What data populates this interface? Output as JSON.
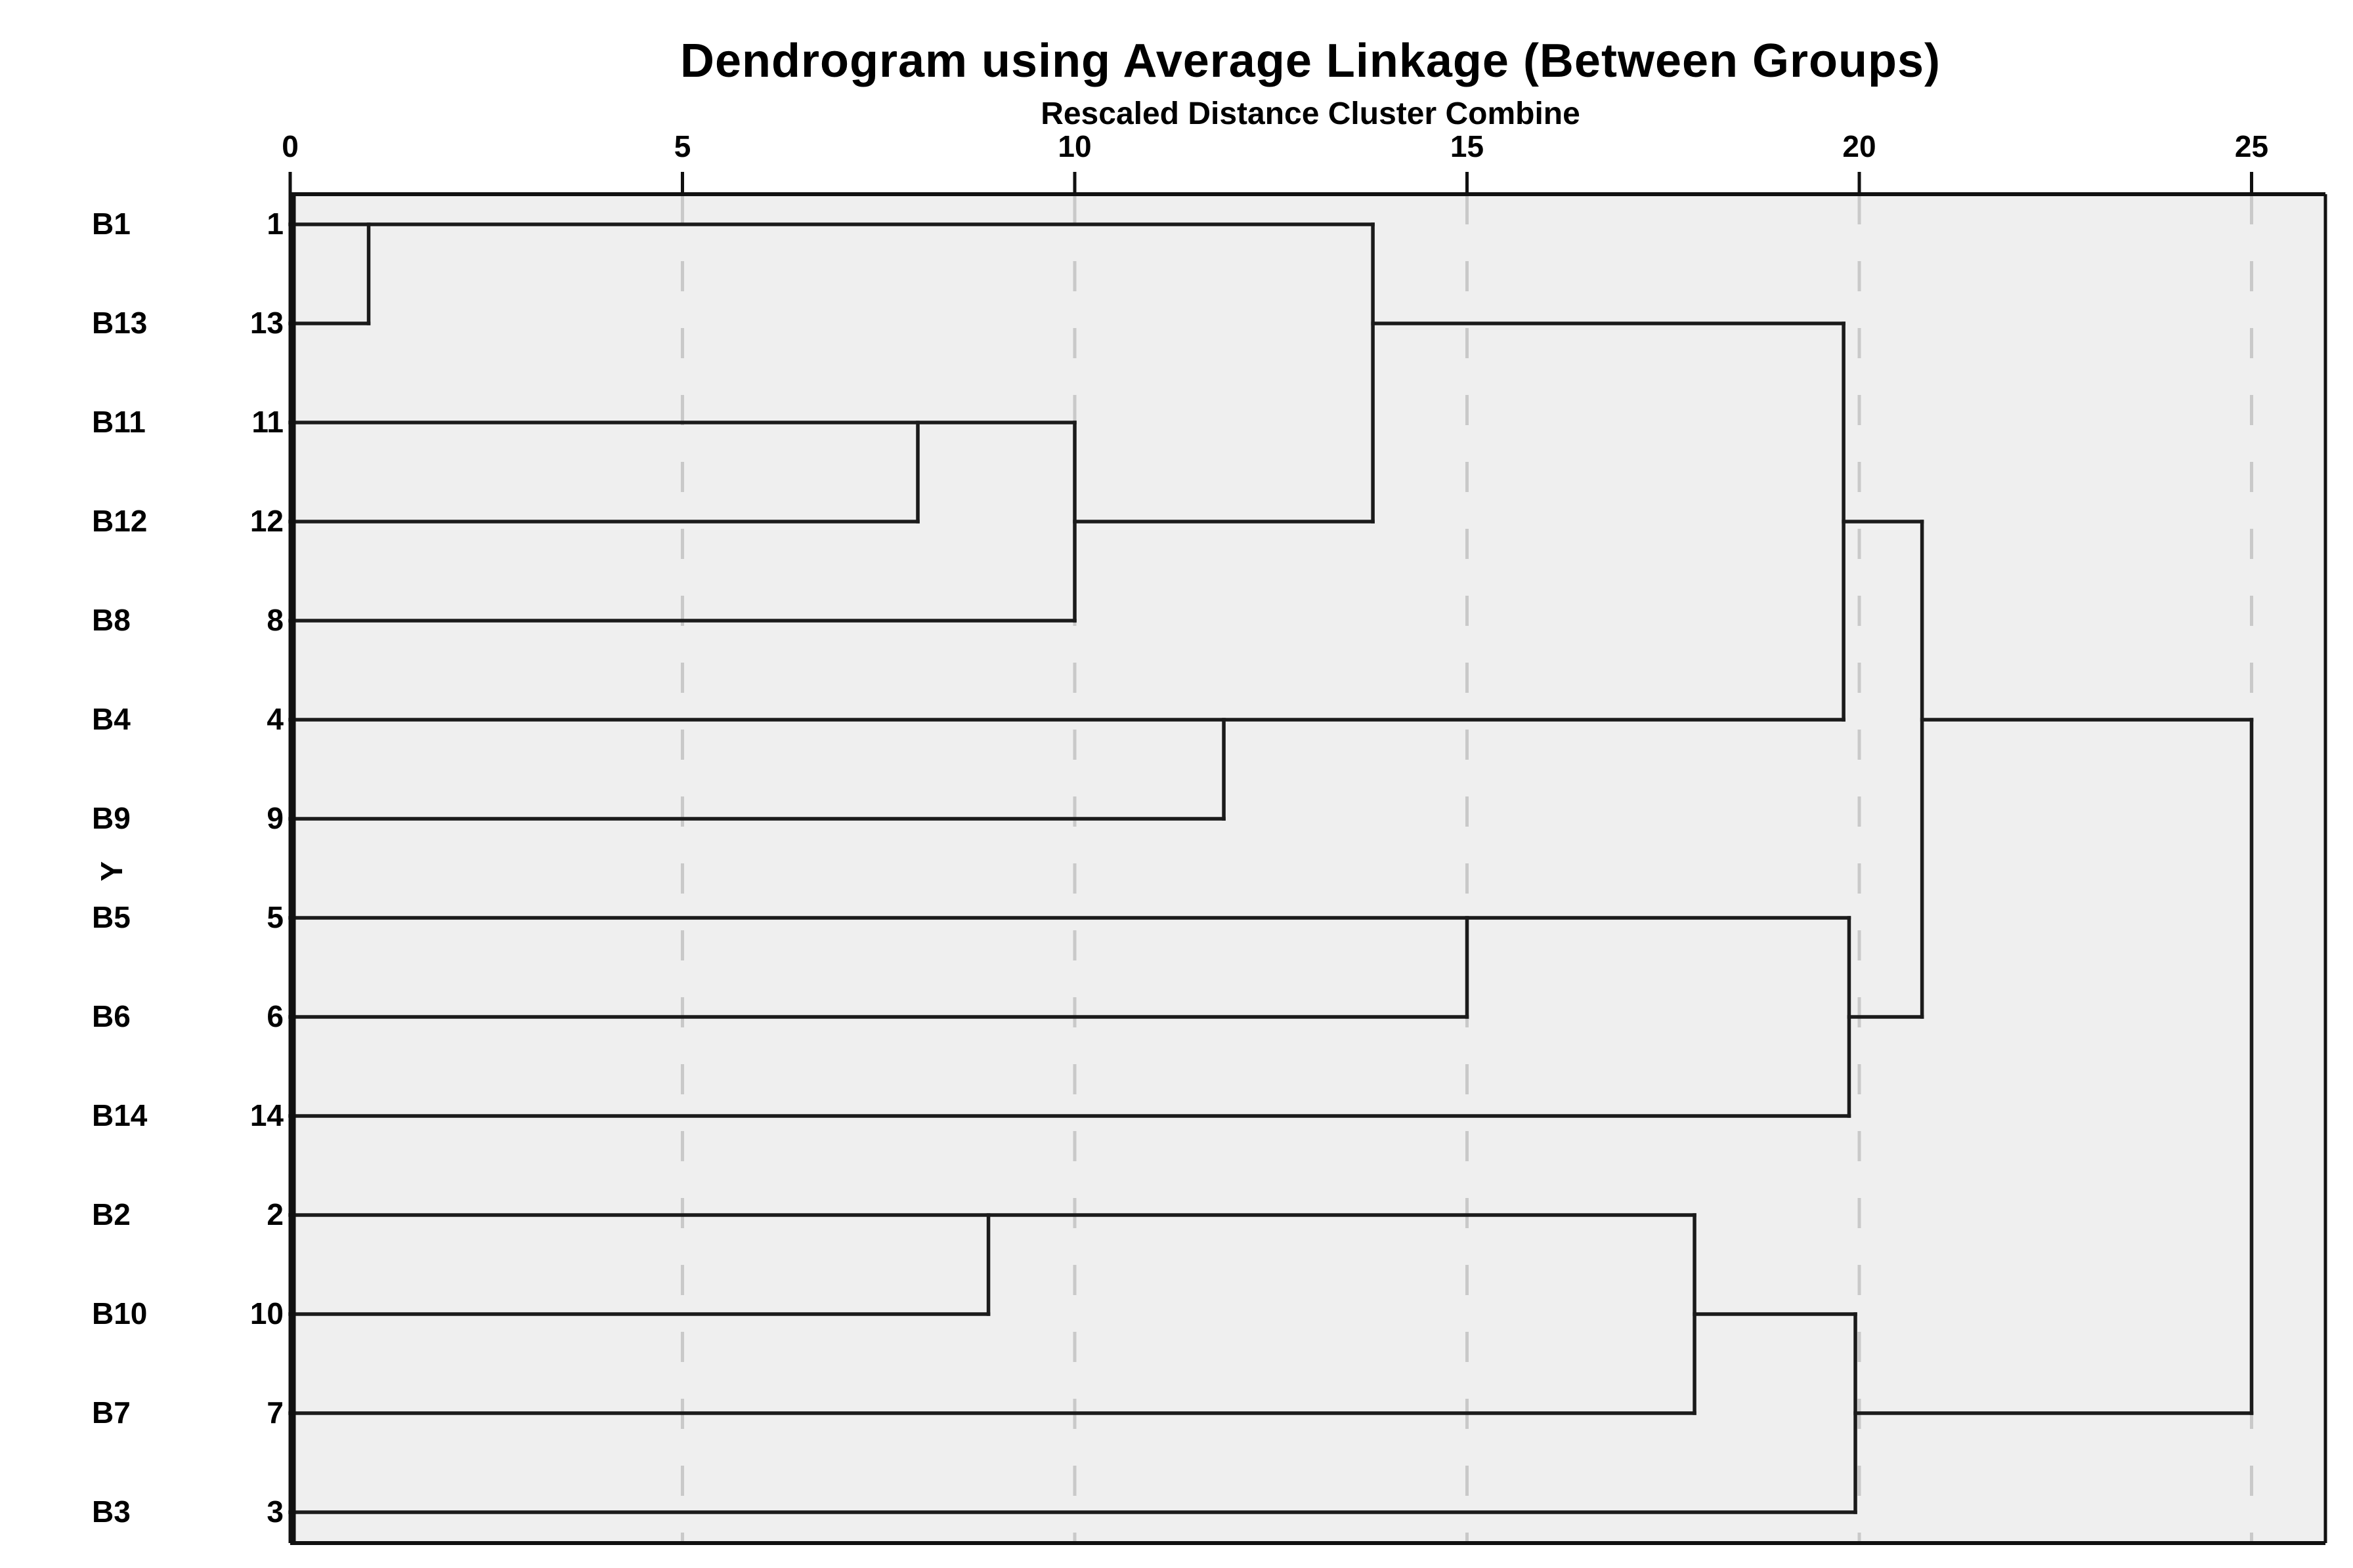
{
  "title": "Dendrogram using Average Linkage (Between Groups)",
  "subtitle": "Rescaled Distance Cluster Combine",
  "y_axis_label": "Y",
  "colors": {
    "page_bg": "#ffffff",
    "plot_bg": "#efefef",
    "line": "#1b1b1b",
    "gridline": "#c9c9c9",
    "border": "#111111",
    "text": "#000000"
  },
  "chart_data": {
    "type": "dendrogram",
    "orientation": "horizontal",
    "linkage_method": "Average Linkage (Between Groups)",
    "distance_axis_title": "Rescaled Distance Cluster Combine",
    "x_axis": {
      "min": 0,
      "max": 26,
      "ticks": [
        0,
        5,
        10,
        15,
        20,
        25
      ],
      "tick_labels": [
        "0",
        "5",
        "10",
        "15",
        "20",
        "25"
      ],
      "gridlines_at": [
        5,
        10,
        15,
        20,
        25
      ],
      "gridline_style": "dashed"
    },
    "leaves": [
      {
        "label": "B1",
        "case_number": "1"
      },
      {
        "label": "B13",
        "case_number": "13"
      },
      {
        "label": "B11",
        "case_number": "11"
      },
      {
        "label": "B12",
        "case_number": "12"
      },
      {
        "label": "B8",
        "case_number": "8"
      },
      {
        "label": "B4",
        "case_number": "4"
      },
      {
        "label": "B9",
        "case_number": "9"
      },
      {
        "label": "B5",
        "case_number": "5"
      },
      {
        "label": "B6",
        "case_number": "6"
      },
      {
        "label": "B14",
        "case_number": "14"
      },
      {
        "label": "B2",
        "case_number": "2"
      },
      {
        "label": "B10",
        "case_number": "10"
      },
      {
        "label": "B7",
        "case_number": "7"
      },
      {
        "label": "B3",
        "case_number": "3"
      }
    ],
    "merges": [
      {
        "clusters": [
          "B1",
          "B13"
        ],
        "distance": 1
      },
      {
        "clusters": [
          "B11",
          "B12"
        ],
        "distance": 8
      },
      {
        "clusters": [
          "B11+B12",
          "B8"
        ],
        "distance": 10
      },
      {
        "clusters": [
          "B4",
          "B9"
        ],
        "distance": 12
      },
      {
        "clusters": [
          "B1+B13",
          "B11+B12+B8"
        ],
        "distance": 14
      },
      {
        "clusters": [
          "B5",
          "B6"
        ],
        "distance": 15
      },
      {
        "clusters": [
          "B2",
          "B10"
        ],
        "distance": 9
      },
      {
        "clusters": [
          "B2+B10",
          "B7"
        ],
        "distance": 18
      },
      {
        "clusters": [
          "B1+B13+B11+B12+B8",
          "B4+B9"
        ],
        "distance": 20
      },
      {
        "clusters": [
          "B5+B6",
          "B14"
        ],
        "distance": 20
      },
      {
        "clusters": [
          "B2+B10+B7",
          "B3"
        ],
        "distance": 20
      },
      {
        "clusters": [
          "B1+B13+B11+B12+B8+B4+B9",
          "B5+B6+B14"
        ],
        "distance": 21
      },
      {
        "clusters": [
          "B1+B13+B11+B12+B8+B4+B9+B5+B6+B14",
          "B2+B10+B7+B3"
        ],
        "distance": 25
      }
    ],
    "segments": {
      "horizontal": [
        {
          "row": 1,
          "from": 0,
          "to": 13.8
        },
        {
          "row": 2,
          "from": 0,
          "to": 1
        },
        {
          "row": 2,
          "from": 13.8,
          "to": 19.8
        },
        {
          "row": 3,
          "from": 0,
          "to": 10
        },
        {
          "row": 4,
          "from": 0,
          "to": 8
        },
        {
          "row": 4,
          "from": 10,
          "to": 13.8
        },
        {
          "row": 5,
          "from": 0,
          "to": 10
        },
        {
          "row": 6,
          "from": 0,
          "to": 19.8
        },
        {
          "row": 4,
          "from": 19.8,
          "to": 20.8
        },
        {
          "row": 7,
          "from": 0,
          "to": 11.9
        },
        {
          "row": 8,
          "from": 0,
          "to": 19.87
        },
        {
          "row": 9,
          "from": 0,
          "to": 15
        },
        {
          "row": 9,
          "from": 19.87,
          "to": 20.8
        },
        {
          "row": 10,
          "from": 0,
          "to": 19.87
        },
        {
          "row": 6,
          "from": 20.8,
          "to": 25
        },
        {
          "row": 11,
          "from": 0,
          "to": 17.9
        },
        {
          "row": 12,
          "from": 0,
          "to": 8.9
        },
        {
          "row": 12,
          "from": 17.9,
          "to": 19.95
        },
        {
          "row": 13,
          "from": 0,
          "to": 17.9
        },
        {
          "row": 13,
          "from": 19.95,
          "to": 25
        },
        {
          "row": 14,
          "from": 0,
          "to": 19.95
        }
      ],
      "vertical": [
        {
          "at": 1,
          "row_from": 1,
          "row_to": 2
        },
        {
          "at": 8,
          "row_from": 3,
          "row_to": 4
        },
        {
          "at": 10,
          "row_from": 3,
          "row_to": 5
        },
        {
          "at": 11.9,
          "row_from": 6,
          "row_to": 7
        },
        {
          "at": 13.8,
          "row_from": 1,
          "row_to": 4
        },
        {
          "at": 15,
          "row_from": 8,
          "row_to": 9
        },
        {
          "at": 8.9,
          "row_from": 11,
          "row_to": 12
        },
        {
          "at": 17.9,
          "row_from": 11,
          "row_to": 13
        },
        {
          "at": 19.8,
          "row_from": 2,
          "row_to": 6
        },
        {
          "at": 19.87,
          "row_from": 8,
          "row_to": 10
        },
        {
          "at": 19.95,
          "row_from": 12,
          "row_to": 14
        },
        {
          "at": 20.8,
          "row_from": 4,
          "row_to": 9
        },
        {
          "at": 25,
          "row_from": 6,
          "row_to": 13
        }
      ]
    }
  }
}
